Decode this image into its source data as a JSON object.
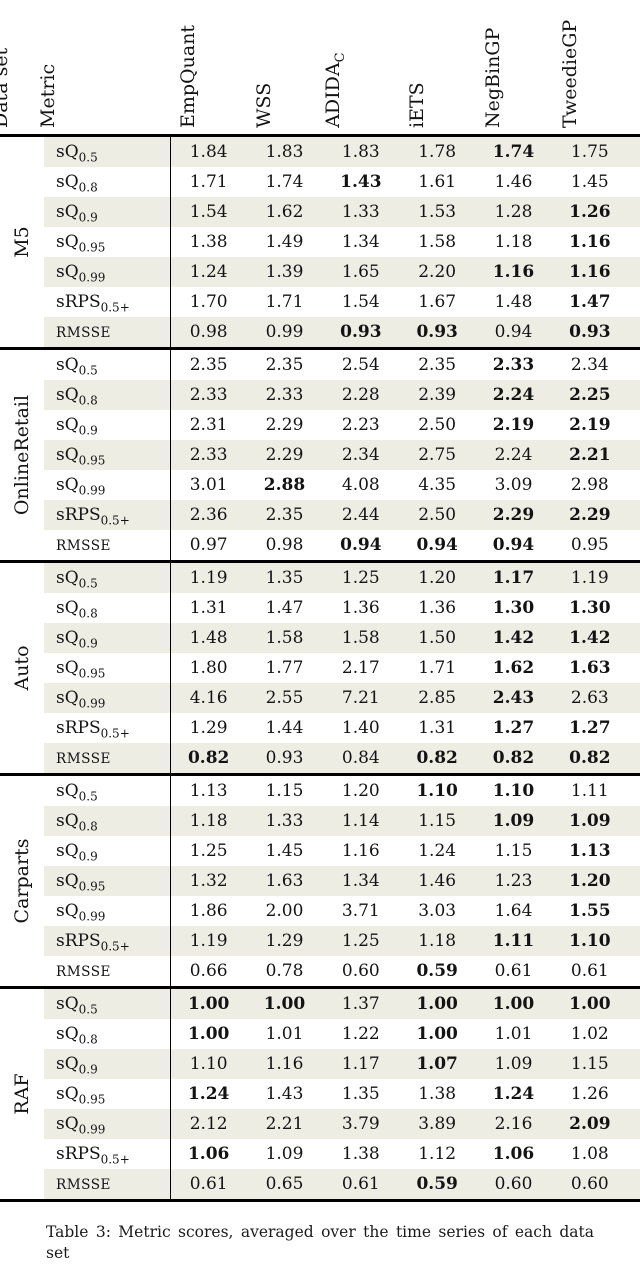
{
  "page": {
    "caption": "Table 3: Metric scores, averaged over the time series of each data set"
  },
  "style": {
    "shaded_row_color": "#eeede4",
    "rule_color": "#000000"
  },
  "table": {
    "corner_headers": {
      "dataset": "Data set",
      "metric": "Metric"
    },
    "method_headers": [
      {
        "label": "EmpQuant",
        "sub": ""
      },
      {
        "label": "WSS",
        "sub": ""
      },
      {
        "label": "ADIDA",
        "sub": "C"
      },
      {
        "label": "iETS",
        "sub": ""
      },
      {
        "label": "NegBinGP",
        "sub": ""
      },
      {
        "label": "TweedieGP",
        "sub": ""
      }
    ],
    "groups": [
      {
        "dataset": "M5",
        "rows": [
          {
            "label": "sQ",
            "sub": "0.5",
            "sc": false,
            "values": [
              "1.84",
              "1.83",
              "1.83",
              "1.78",
              "1.74",
              "1.75"
            ],
            "bold": [
              4
            ]
          },
          {
            "label": "sQ",
            "sub": "0.8",
            "sc": false,
            "values": [
              "1.71",
              "1.74",
              "1.43",
              "1.61",
              "1.46",
              "1.45"
            ],
            "bold": [
              2
            ]
          },
          {
            "label": "sQ",
            "sub": "0.9",
            "sc": false,
            "values": [
              "1.54",
              "1.62",
              "1.33",
              "1.53",
              "1.28",
              "1.26"
            ],
            "bold": [
              5
            ]
          },
          {
            "label": "sQ",
            "sub": "0.95",
            "sc": false,
            "values": [
              "1.38",
              "1.49",
              "1.34",
              "1.58",
              "1.18",
              "1.16"
            ],
            "bold": [
              5
            ]
          },
          {
            "label": "sQ",
            "sub": "0.99",
            "sc": false,
            "values": [
              "1.24",
              "1.39",
              "1.65",
              "2.20",
              "1.16",
              "1.16"
            ],
            "bold": [
              4,
              5
            ]
          },
          {
            "label": "sRPS",
            "sub": "0.5+",
            "sc": false,
            "values": [
              "1.70",
              "1.71",
              "1.54",
              "1.67",
              "1.48",
              "1.47"
            ],
            "bold": [
              5
            ]
          },
          {
            "label": "RMSSE",
            "sub": "",
            "sc": true,
            "values": [
              "0.98",
              "0.99",
              "0.93",
              "0.93",
              "0.94",
              "0.93"
            ],
            "bold": [
              2,
              3,
              5
            ]
          }
        ]
      },
      {
        "dataset": "OnlineRetail",
        "rows": [
          {
            "label": "sQ",
            "sub": "0.5",
            "sc": false,
            "values": [
              "2.35",
              "2.35",
              "2.54",
              "2.35",
              "2.33",
              "2.34"
            ],
            "bold": [
              4
            ]
          },
          {
            "label": "sQ",
            "sub": "0.8",
            "sc": false,
            "values": [
              "2.33",
              "2.33",
              "2.28",
              "2.39",
              "2.24",
              "2.25"
            ],
            "bold": [
              4,
              5
            ]
          },
          {
            "label": "sQ",
            "sub": "0.9",
            "sc": false,
            "values": [
              "2.31",
              "2.29",
              "2.23",
              "2.50",
              "2.19",
              "2.19"
            ],
            "bold": [
              4,
              5
            ]
          },
          {
            "label": "sQ",
            "sub": "0.95",
            "sc": false,
            "values": [
              "2.33",
              "2.29",
              "2.34",
              "2.75",
              "2.24",
              "2.21"
            ],
            "bold": [
              5
            ]
          },
          {
            "label": "sQ",
            "sub": "0.99",
            "sc": false,
            "values": [
              "3.01",
              "2.88",
              "4.08",
              "4.35",
              "3.09",
              "2.98"
            ],
            "bold": [
              1
            ]
          },
          {
            "label": "sRPS",
            "sub": "0.5+",
            "sc": false,
            "values": [
              "2.36",
              "2.35",
              "2.44",
              "2.50",
              "2.29",
              "2.29"
            ],
            "bold": [
              4,
              5
            ]
          },
          {
            "label": "RMSSE",
            "sub": "",
            "sc": true,
            "values": [
              "0.97",
              "0.98",
              "0.94",
              "0.94",
              "0.94",
              "0.95"
            ],
            "bold": [
              2,
              3,
              4
            ]
          }
        ]
      },
      {
        "dataset": "Auto",
        "rows": [
          {
            "label": "sQ",
            "sub": "0.5",
            "sc": false,
            "values": [
              "1.19",
              "1.35",
              "1.25",
              "1.20",
              "1.17",
              "1.19"
            ],
            "bold": [
              4
            ]
          },
          {
            "label": "sQ",
            "sub": "0.8",
            "sc": false,
            "values": [
              "1.31",
              "1.47",
              "1.36",
              "1.36",
              "1.30",
              "1.30"
            ],
            "bold": [
              4,
              5
            ]
          },
          {
            "label": "sQ",
            "sub": "0.9",
            "sc": false,
            "values": [
              "1.48",
              "1.58",
              "1.58",
              "1.50",
              "1.42",
              "1.42"
            ],
            "bold": [
              4,
              5
            ]
          },
          {
            "label": "sQ",
            "sub": "0.95",
            "sc": false,
            "values": [
              "1.80",
              "1.77",
              "2.17",
              "1.71",
              "1.62",
              "1.63"
            ],
            "bold": [
              4,
              5
            ]
          },
          {
            "label": "sQ",
            "sub": "0.99",
            "sc": false,
            "values": [
              "4.16",
              "2.55",
              "7.21",
              "2.85",
              "2.43",
              "2.63"
            ],
            "bold": [
              4
            ]
          },
          {
            "label": "sRPS",
            "sub": "0.5+",
            "sc": false,
            "values": [
              "1.29",
              "1.44",
              "1.40",
              "1.31",
              "1.27",
              "1.27"
            ],
            "bold": [
              4,
              5
            ]
          },
          {
            "label": "RMSSE",
            "sub": "",
            "sc": true,
            "values": [
              "0.82",
              "0.93",
              "0.84",
              "0.82",
              "0.82",
              "0.82"
            ],
            "bold": [
              0,
              3,
              4,
              5
            ]
          }
        ]
      },
      {
        "dataset": "Carparts",
        "rows": [
          {
            "label": "sQ",
            "sub": "0.5",
            "sc": false,
            "values": [
              "1.13",
              "1.15",
              "1.20",
              "1.10",
              "1.10",
              "1.11"
            ],
            "bold": [
              3,
              4
            ]
          },
          {
            "label": "sQ",
            "sub": "0.8",
            "sc": false,
            "values": [
              "1.18",
              "1.33",
              "1.14",
              "1.15",
              "1.09",
              "1.09"
            ],
            "bold": [
              4,
              5
            ]
          },
          {
            "label": "sQ",
            "sub": "0.9",
            "sc": false,
            "values": [
              "1.25",
              "1.45",
              "1.16",
              "1.24",
              "1.15",
              "1.13"
            ],
            "bold": [
              5
            ]
          },
          {
            "label": "sQ",
            "sub": "0.95",
            "sc": false,
            "values": [
              "1.32",
              "1.63",
              "1.34",
              "1.46",
              "1.23",
              "1.20"
            ],
            "bold": [
              5
            ]
          },
          {
            "label": "sQ",
            "sub": "0.99",
            "sc": false,
            "values": [
              "1.86",
              "2.00",
              "3.71",
              "3.03",
              "1.64",
              "1.55"
            ],
            "bold": [
              5
            ]
          },
          {
            "label": "sRPS",
            "sub": "0.5+",
            "sc": false,
            "values": [
              "1.19",
              "1.29",
              "1.25",
              "1.18",
              "1.11",
              "1.10"
            ],
            "bold": [
              4,
              5
            ]
          },
          {
            "label": "RMSSE",
            "sub": "",
            "sc": true,
            "values": [
              "0.66",
              "0.78",
              "0.60",
              "0.59",
              "0.61",
              "0.61"
            ],
            "bold": [
              3
            ]
          }
        ]
      },
      {
        "dataset": "RAF",
        "rows": [
          {
            "label": "sQ",
            "sub": "0.5",
            "sc": false,
            "values": [
              "1.00",
              "1.00",
              "1.37",
              "1.00",
              "1.00",
              "1.00"
            ],
            "bold": [
              0,
              1,
              3,
              4,
              5
            ]
          },
          {
            "label": "sQ",
            "sub": "0.8",
            "sc": false,
            "values": [
              "1.00",
              "1.01",
              "1.22",
              "1.00",
              "1.01",
              "1.02"
            ],
            "bold": [
              0,
              3
            ]
          },
          {
            "label": "sQ",
            "sub": "0.9",
            "sc": false,
            "values": [
              "1.10",
              "1.16",
              "1.17",
              "1.07",
              "1.09",
              "1.15"
            ],
            "bold": [
              3
            ]
          },
          {
            "label": "sQ",
            "sub": "0.95",
            "sc": false,
            "values": [
              "1.24",
              "1.43",
              "1.35",
              "1.38",
              "1.24",
              "1.26"
            ],
            "bold": [
              0,
              4
            ]
          },
          {
            "label": "sQ",
            "sub": "0.99",
            "sc": false,
            "values": [
              "2.12",
              "2.21",
              "3.79",
              "3.89",
              "2.16",
              "2.09"
            ],
            "bold": [
              5
            ]
          },
          {
            "label": "sRPS",
            "sub": "0.5+",
            "sc": false,
            "values": [
              "1.06",
              "1.09",
              "1.38",
              "1.12",
              "1.06",
              "1.08"
            ],
            "bold": [
              0,
              4
            ]
          },
          {
            "label": "RMSSE",
            "sub": "",
            "sc": true,
            "values": [
              "0.61",
              "0.65",
              "0.61",
              "0.59",
              "0.60",
              "0.60"
            ],
            "bold": [
              3
            ]
          }
        ]
      }
    ]
  }
}
